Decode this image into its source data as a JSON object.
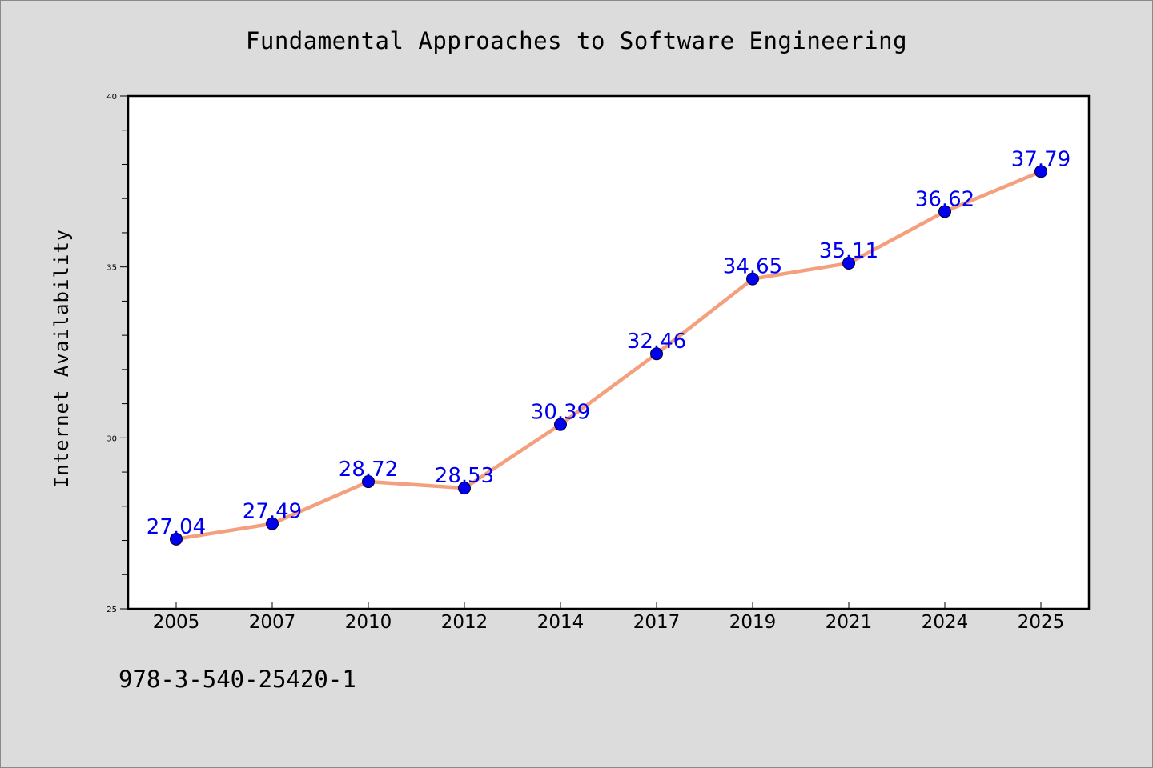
{
  "chart_data": {
    "type": "line",
    "title": "Fundamental Approaches to Software Engineering",
    "ylabel": "Internet Availability",
    "xlabel": "",
    "categories": [
      "2005",
      "2007",
      "2010",
      "2012",
      "2014",
      "2017",
      "2019",
      "2021",
      "2024",
      "2025"
    ],
    "values": [
      27.04,
      27.49,
      28.72,
      28.53,
      30.39,
      32.46,
      34.65,
      35.11,
      36.62,
      37.79
    ],
    "data_labels": [
      "27.04",
      "27.49",
      "28.72",
      "28.53",
      "30.39",
      "32.46",
      "34.65",
      "35.11",
      "36.62",
      "37.79"
    ],
    "ylim": [
      25,
      40
    ],
    "y_ticks": [
      "25",
      "30",
      "35",
      "40"
    ],
    "grid": false,
    "legend": "none",
    "line_color": "#f4a07e",
    "marker_color": "#0000ee",
    "label_color": "#0000ee",
    "footnote": "978-3-540-25420-1"
  }
}
